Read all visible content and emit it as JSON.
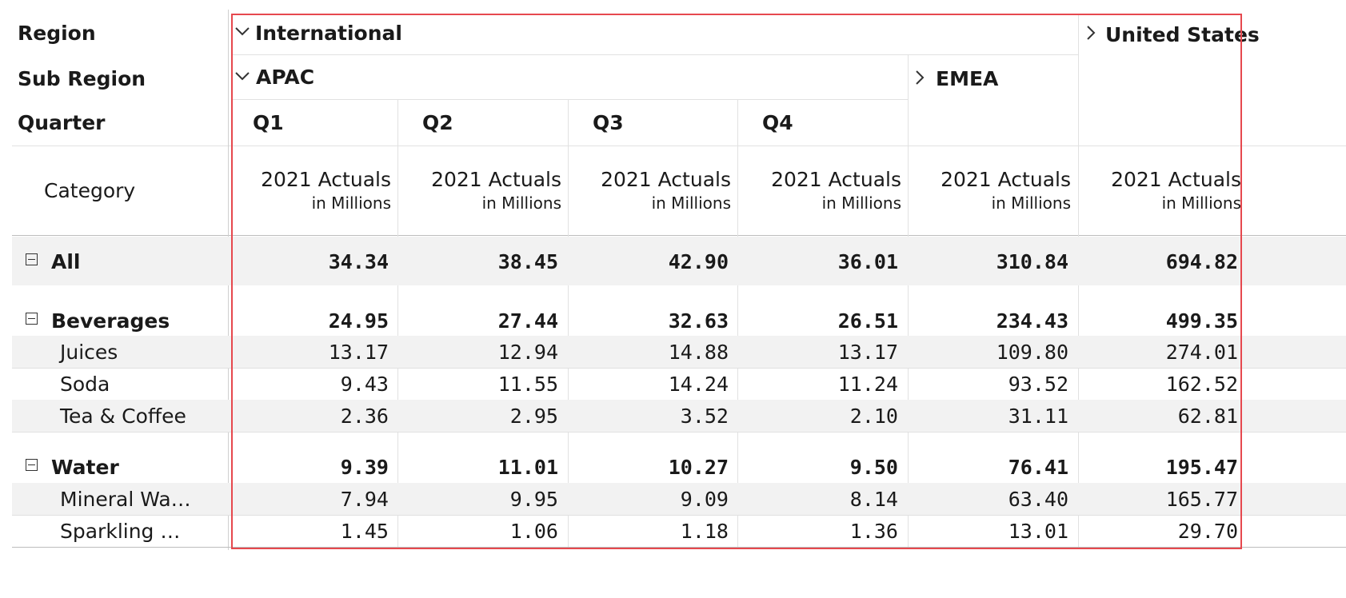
{
  "row_headers": {
    "region": "Region",
    "sub_region": "Sub Region",
    "quarter": "Quarter",
    "category": "Category"
  },
  "columns": {
    "international": "International",
    "united_states": "United States",
    "apac": "APAC",
    "emea": "EMEA",
    "quarters": [
      "Q1",
      "Q2",
      "Q3",
      "Q4"
    ],
    "measure_title": "2021 Actuals",
    "measure_sub": "in Millions"
  },
  "rows": {
    "all": {
      "label": "All",
      "values": [
        "34.34",
        "38.45",
        "42.90",
        "36.01",
        "310.84",
        "694.82"
      ]
    },
    "beverages": {
      "label": "Beverages",
      "values": [
        "24.95",
        "27.44",
        "32.63",
        "26.51",
        "234.43",
        "499.35"
      ]
    },
    "juices": {
      "label": "Juices",
      "values": [
        "13.17",
        "12.94",
        "14.88",
        "13.17",
        "109.80",
        "274.01"
      ]
    },
    "soda": {
      "label": "Soda",
      "values": [
        "9.43",
        "11.55",
        "14.24",
        "11.24",
        "93.52",
        "162.52"
      ]
    },
    "tea_coffee": {
      "label": "Tea & Coffee",
      "values": [
        "2.36",
        "2.95",
        "3.52",
        "2.10",
        "31.11",
        "62.81"
      ]
    },
    "water": {
      "label": "Water",
      "values": [
        "9.39",
        "11.01",
        "10.27",
        "9.50",
        "76.41",
        "195.47"
      ]
    },
    "mineral_water": {
      "label": "Mineral Wa…",
      "values": [
        "7.94",
        "9.95",
        "9.09",
        "8.14",
        "63.40",
        "165.77"
      ]
    },
    "sparkling": {
      "label": "Sparkling …",
      "values": [
        "1.45",
        "1.06",
        "1.18",
        "1.36",
        "13.01",
        "29.70"
      ]
    }
  },
  "icons": {
    "expanded": "chevron-down-icon",
    "collapsed": "chevron-right-icon",
    "collapse_toggle": "minus-square-icon"
  },
  "colors": {
    "highlight_border": "#e6484e",
    "band": "#f2f2f2",
    "grid": "#e1e1e1"
  }
}
